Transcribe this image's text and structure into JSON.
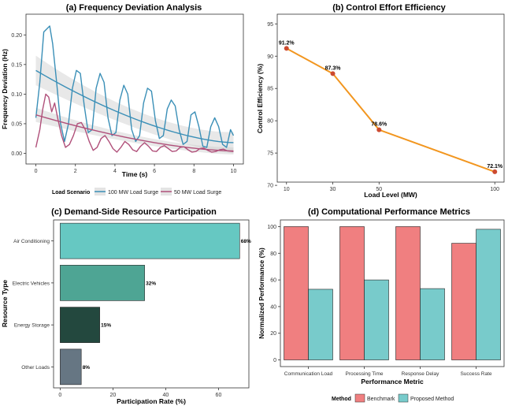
{
  "chart_data": [
    {
      "type": "line",
      "title": "(a) Frequency Deviation Analysis",
      "xlabel": "Time (s)",
      "ylabel": "Frequency Deviation (Hz)",
      "xlim": [
        -0.5,
        10.5
      ],
      "ylim": [
        -0.018,
        0.235
      ],
      "xticks": [
        0,
        2,
        4,
        6,
        8,
        10
      ],
      "yticks": [
        0.0,
        0.05,
        0.1,
        0.15,
        0.2
      ],
      "ytick_labels": [
        "0.00",
        "0.05",
        "0.10",
        "0.15",
        "0.20"
      ],
      "legend_title": "Load Scenario",
      "legend_position": "bottom",
      "series": [
        {
          "name": "100 MW Load Surge",
          "color": "#3a8fb7",
          "x": [
            0.0,
            0.2,
            0.4,
            0.55,
            0.7,
            0.85,
            1.05,
            1.25,
            1.45,
            1.65,
            1.85,
            2.05,
            2.25,
            2.45,
            2.65,
            2.85,
            3.05,
            3.25,
            3.45,
            3.65,
            3.85,
            4.05,
            4.25,
            4.45,
            4.65,
            4.85,
            5.05,
            5.25,
            5.45,
            5.65,
            5.85,
            6.05,
            6.25,
            6.45,
            6.65,
            6.85,
            7.05,
            7.25,
            7.45,
            7.65,
            7.85,
            8.05,
            8.25,
            8.45,
            8.65,
            8.85,
            9.05,
            9.25,
            9.45,
            9.65,
            9.85,
            10.0
          ],
          "y": [
            0.06,
            0.12,
            0.205,
            0.21,
            0.215,
            0.185,
            0.12,
            0.05,
            0.02,
            0.05,
            0.11,
            0.14,
            0.135,
            0.08,
            0.035,
            0.04,
            0.11,
            0.135,
            0.12,
            0.06,
            0.03,
            0.035,
            0.09,
            0.115,
            0.1,
            0.04,
            0.02,
            0.03,
            0.085,
            0.11,
            0.105,
            0.055,
            0.025,
            0.03,
            0.075,
            0.09,
            0.08,
            0.04,
            0.015,
            0.02,
            0.065,
            0.07,
            0.045,
            0.012,
            0.01,
            0.045,
            0.06,
            0.045,
            0.015,
            0.01,
            0.04,
            0.03
          ],
          "trend": {
            "start": 0.14,
            "end": 0.018,
            "ci_halfwidth_start": 0.025,
            "ci_halfwidth_mid": 0.008,
            "ci_halfwidth_end": 0.018
          }
        },
        {
          "name": "50 MW Load Surge",
          "color": "#b0507a",
          "x": [
            0.0,
            0.2,
            0.35,
            0.5,
            0.65,
            0.8,
            0.95,
            1.1,
            1.3,
            1.5,
            1.7,
            1.9,
            2.1,
            2.3,
            2.5,
            2.7,
            2.9,
            3.1,
            3.3,
            3.5,
            3.7,
            3.9,
            4.1,
            4.3,
            4.5,
            4.7,
            4.9,
            5.1,
            5.3,
            5.5,
            5.7,
            5.9,
            6.1,
            6.3,
            6.5,
            6.7,
            6.9,
            7.1,
            7.3,
            7.5,
            7.7,
            7.9,
            8.1,
            8.3,
            8.5,
            8.7,
            8.9,
            9.1,
            9.3,
            9.5,
            9.7,
            10.0
          ],
          "y": [
            0.01,
            0.04,
            0.075,
            0.1,
            0.095,
            0.07,
            0.085,
            0.06,
            0.03,
            0.01,
            0.015,
            0.03,
            0.05,
            0.052,
            0.04,
            0.02,
            0.005,
            0.01,
            0.025,
            0.03,
            0.02,
            0.008,
            0.002,
            0.01,
            0.02,
            0.015,
            0.006,
            0.003,
            0.012,
            0.018,
            0.012,
            0.004,
            0.003,
            0.01,
            0.013,
            0.008,
            0.003,
            0.004,
            0.01,
            0.011,
            0.006,
            0.002,
            0.003,
            0.008,
            0.009,
            0.005,
            0.002,
            0.003,
            0.006,
            0.007,
            0.004,
            0.003
          ],
          "trend": {
            "start": 0.065,
            "end": 0.004,
            "ci_halfwidth_start": 0.012,
            "ci_halfwidth_mid": 0.004,
            "ci_halfwidth_end": 0.006
          }
        }
      ]
    },
    {
      "type": "line",
      "title": "(b) Control Effort Efficiency",
      "xlabel": "Load Level (MW)",
      "ylabel": "Control Efficiency (%)",
      "xlim": [
        6,
        104
      ],
      "ylim": [
        70.5,
        96.5
      ],
      "xticks": [
        10,
        30,
        50,
        100
      ],
      "yticks": [
        70,
        75,
        80,
        85,
        90,
        95
      ],
      "series": [
        {
          "color": "#f2961f",
          "marker_color": "#cc4a30",
          "x": [
            10,
            30,
            50,
            100
          ],
          "y": [
            91.2,
            87.3,
            78.6,
            72.1
          ],
          "labels": [
            "91.2%",
            "87.3%",
            "78.6%",
            "72.1%"
          ]
        }
      ]
    },
    {
      "type": "bar",
      "orientation": "horizontal",
      "title": "(c) Demand-Side Resource Participation",
      "xlabel": "Participation Rate (%)",
      "ylabel": "Resource Type",
      "xlim": [
        -2.5,
        71.5
      ],
      "xticks": [
        0,
        20,
        40,
        60
      ],
      "categories": [
        "Air Conditioning",
        "Electric Vehicles",
        "Energy Storage",
        "Other Loads"
      ],
      "values": [
        68,
        32,
        15,
        8
      ],
      "value_labels": [
        "68%",
        "32%",
        "15%",
        "8%"
      ],
      "colors": [
        "#66c8c2",
        "#4ea594",
        "#23483e",
        "#667683"
      ]
    },
    {
      "type": "bar",
      "title": "(d) Computational Performance Metrics",
      "xlabel": "Performance Metric",
      "ylabel": "Normalized Performance (%)",
      "ylim": [
        -5,
        105
      ],
      "yticks": [
        0,
        20,
        40,
        60,
        80,
        100
      ],
      "categories": [
        "Communication Load",
        "Processing Time",
        "Response Delay",
        "Success Rate"
      ],
      "legend_title": "Method",
      "legend_position": "bottom",
      "series": [
        {
          "name": "Benchmark",
          "color": "#f07f80",
          "values": [
            100,
            100,
            100,
            87.5
          ]
        },
        {
          "name": "Proposed Method",
          "color": "#78cbcb",
          "values": [
            53,
            60,
            53.5,
            98
          ]
        }
      ]
    }
  ]
}
